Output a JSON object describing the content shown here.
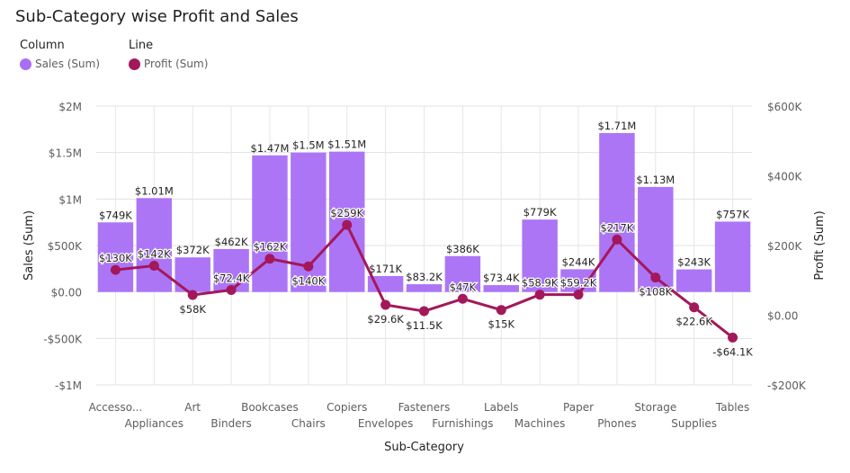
{
  "chart_data": {
    "type": "bar",
    "title": "Sub-Category wise Profit and Sales",
    "legend": {
      "column_heading": "Column",
      "line_heading": "Line",
      "placement": "top-left"
    },
    "xlabel": "Sub-Category",
    "ylabel_left": "Sales (Sum)",
    "ylabel_right": "Profit (Sum)",
    "categories": [
      "Accesso...",
      "Appliances",
      "Art",
      "Binders",
      "Bookcases",
      "Chairs",
      "Copiers",
      "Envelopes",
      "Fasteners",
      "Furnishings",
      "Labels",
      "Machines",
      "Paper",
      "Phones",
      "Storage",
      "Supplies",
      "Tables"
    ],
    "left_axis": {
      "min": -1000000,
      "max": 2000000,
      "ticks": [
        2000000,
        1500000,
        1000000,
        500000,
        0,
        -500000,
        -1000000
      ],
      "tick_labels": [
        "$2M",
        "$1.5M",
        "$1M",
        "$500K",
        "$0.00",
        "-$500K",
        "-$1M"
      ]
    },
    "right_axis": {
      "min": -200000,
      "max": 600000,
      "ticks": [
        600000,
        400000,
        200000,
        0,
        -200000
      ],
      "tick_labels": [
        "$600K",
        "$400K",
        "$200K",
        "$0.00",
        "-$200K"
      ]
    },
    "grid": true,
    "series": [
      {
        "name": "Sales (Sum)",
        "type": "column",
        "axis": "left",
        "color": "#a86ef6",
        "values": [
          749000,
          1010000,
          372000,
          462000,
          1470000,
          1500000,
          1510000,
          171000,
          83200,
          386000,
          73400,
          779000,
          244000,
          1710000,
          1130000,
          243000,
          757000
        ],
        "labels": [
          "$749K",
          "$1.01M",
          "$372K",
          "$462K",
          "$1.47M",
          "$1.5M",
          "$1.51M",
          "$171K",
          "$83.2K",
          "$386K",
          "$73.4K",
          "$779K",
          "$244K",
          "$1.71M",
          "$1.13M",
          "$243K",
          "$757K"
        ]
      },
      {
        "name": "Profit (Sum)",
        "type": "line",
        "axis": "right",
        "color": "#a3185a",
        "values": [
          130000,
          142000,
          58000,
          72400,
          162000,
          140000,
          259000,
          29600,
          11500,
          47000,
          15000,
          58900,
          59200,
          217000,
          108000,
          22600,
          -64100
        ],
        "labels": [
          "$130K",
          "$142K",
          "$58K",
          "$72.4K",
          "$162K",
          "$140K",
          "$259K",
          "$29.6K",
          "$11.5K",
          "$47K",
          "$15K",
          "$58.9K",
          "$59.2K",
          "$217K",
          "$108K",
          "$22.6K",
          "-$64.1K"
        ]
      }
    ]
  }
}
